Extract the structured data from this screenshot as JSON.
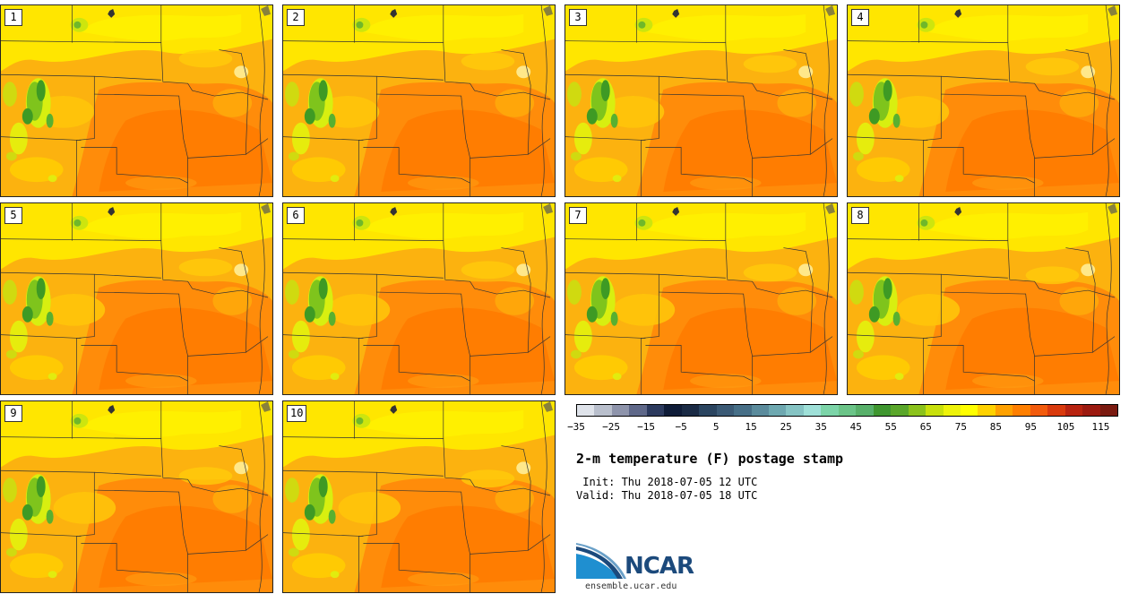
{
  "title": "2-m temperature (F) postage stamp",
  "init_line": " Init: Thu 2018-07-05 12 UTC",
  "valid_line": "Valid: Thu 2018-07-05 18 UTC",
  "logo": {
    "name": "NCAR",
    "url": "ensemble.ucar.edu"
  },
  "members": [
    "1",
    "2",
    "3",
    "4",
    "5",
    "6",
    "7",
    "8",
    "9",
    "10"
  ],
  "colorbar": {
    "colors": [
      "#dfe3ea",
      "#b9bfcc",
      "#8e94ab",
      "#5f6889",
      "#2c3a5e",
      "#0f1c38",
      "#1b2b45",
      "#2b4560",
      "#3b5a75",
      "#476f87",
      "#5b8b9c",
      "#6ea8b0",
      "#86c4c4",
      "#9fe0d8",
      "#7cd4a8",
      "#6bc488",
      "#58b06a",
      "#3f962f",
      "#5aa62a",
      "#8bc21c",
      "#c8e00c",
      "#eef30a",
      "#ffff00",
      "#ffd200",
      "#ffa100",
      "#ff7f00",
      "#f25b0c",
      "#d93a0d",
      "#b82310",
      "#9c1a10",
      "#7a1a10"
    ],
    "ticks": [
      "−35",
      "−25",
      "−15",
      "−5",
      "5",
      "15",
      "25",
      "35",
      "45",
      "55",
      "65",
      "75",
      "85",
      "95",
      "105",
      "115"
    ]
  }
}
